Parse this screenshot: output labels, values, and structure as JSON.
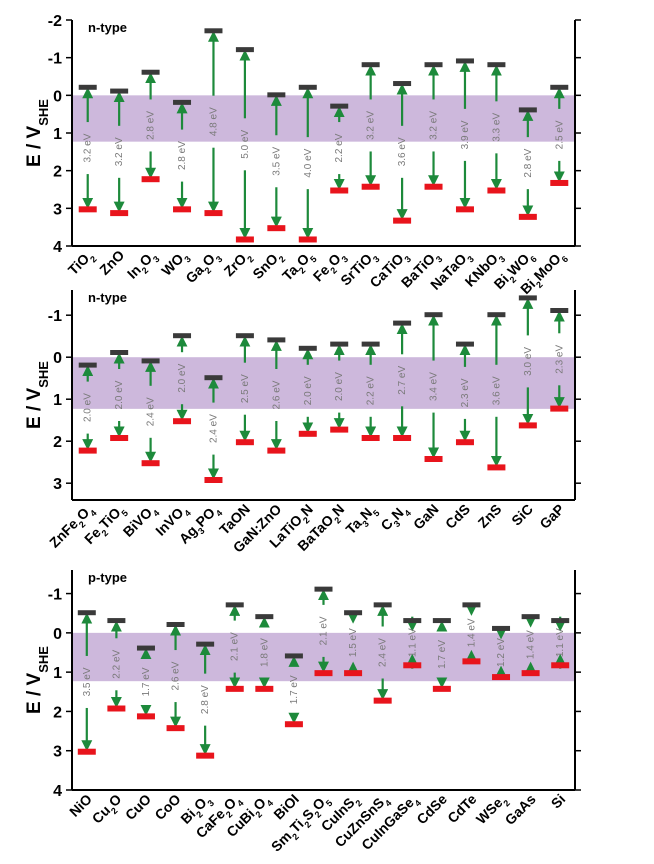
{
  "chart_data": [
    {
      "type": "band-diagram",
      "panel_label": "n-type",
      "ylabel": "E / V",
      "ylabel_sub": "SHE",
      "ylim": [
        4,
        -2
      ],
      "yticks": [
        4,
        3,
        2,
        1,
        0,
        -1,
        -2
      ],
      "water_window": [
        0,
        1.23
      ],
      "materials": [
        {
          "name": [
            "TiO",
            "2"
          ],
          "cb": -0.2,
          "vb": 3.0,
          "gap": "3.2 eV"
        },
        {
          "name": [
            "ZnO"
          ],
          "cb": -0.1,
          "vb": 3.1,
          "gap": "3.2 eV"
        },
        {
          "name": [
            "In",
            "2",
            "O",
            "3"
          ],
          "cb": -0.6,
          "vb": 2.2,
          "gap": "2.8 eV"
        },
        {
          "name": [
            "WO",
            "3"
          ],
          "cb": 0.2,
          "vb": 3.0,
          "gap": "2.8 eV"
        },
        {
          "name": [
            "Ga",
            "2",
            "O",
            "3"
          ],
          "cb": -1.7,
          "vb": 3.1,
          "gap": "4.8 eV"
        },
        {
          "name": [
            "ZrO",
            "2"
          ],
          "cb": -1.2,
          "vb": 3.8,
          "gap": "5.0 eV"
        },
        {
          "name": [
            "SnO",
            "2"
          ],
          "cb": 0.0,
          "vb": 3.5,
          "gap": "3.5 eV"
        },
        {
          "name": [
            "Ta",
            "2",
            "O",
            "5"
          ],
          "cb": -0.2,
          "vb": 3.8,
          "gap": "4.0 eV"
        },
        {
          "name": [
            "Fe",
            "2",
            "O",
            "3"
          ],
          "cb": 0.3,
          "vb": 2.5,
          "gap": "2.2 eV"
        },
        {
          "name": [
            "SrTiO",
            "3"
          ],
          "cb": -0.8,
          "vb": 2.4,
          "gap": "3.2 eV"
        },
        {
          "name": [
            "CaTiO",
            "3"
          ],
          "cb": -0.3,
          "vb": 3.3,
          "gap": "3.6 eV"
        },
        {
          "name": [
            "BaTiO",
            "3"
          ],
          "cb": -0.8,
          "vb": 2.4,
          "gap": "3.2 eV"
        },
        {
          "name": [
            "NaTaO",
            "3"
          ],
          "cb": -0.9,
          "vb": 3.0,
          "gap": "3.9 eV"
        },
        {
          "name": [
            "KNbO",
            "3"
          ],
          "cb": -0.8,
          "vb": 2.5,
          "gap": "3.3 eV"
        },
        {
          "name": [
            "Bi",
            "2",
            "WO",
            "6"
          ],
          "cb": 0.4,
          "vb": 3.2,
          "gap": "2.8 eV"
        },
        {
          "name": [
            "Bi",
            "2",
            "MoO",
            "6"
          ],
          "cb": -0.2,
          "vb": 2.3,
          "gap": "2.5 eV"
        }
      ]
    },
    {
      "type": "band-diagram",
      "panel_label": "n-type",
      "ylabel": "E / V",
      "ylabel_sub": "SHE",
      "ylim": [
        3.4,
        -1.6
      ],
      "yticks": [
        3,
        2,
        1,
        0,
        -1
      ],
      "water_window": [
        0,
        1.23
      ],
      "materials": [
        {
          "name": [
            "ZnFe",
            "2",
            "O",
            "4"
          ],
          "cb": 0.2,
          "vb": 2.2,
          "gap": "2.0 eV"
        },
        {
          "name": [
            "Fe",
            "2",
            "TiO",
            "5"
          ],
          "cb": -0.1,
          "vb": 1.9,
          "gap": "2.0 eV"
        },
        {
          "name": [
            "BiVO",
            "4"
          ],
          "cb": 0.1,
          "vb": 2.5,
          "gap": "2.4 eV"
        },
        {
          "name": [
            "InVO",
            "4"
          ],
          "cb": -0.5,
          "vb": 1.5,
          "gap": "2.0 eV"
        },
        {
          "name": [
            "Ag",
            "3",
            "PO",
            "4"
          ],
          "cb": 0.5,
          "vb": 2.9,
          "gap": "2.4 eV"
        },
        {
          "name": [
            "TaON"
          ],
          "cb": -0.5,
          "vb": 2.0,
          "gap": "2.5 eV"
        },
        {
          "name": [
            "GaN:ZnO"
          ],
          "cb": -0.4,
          "vb": 2.2,
          "gap": "2.6 eV"
        },
        {
          "name": [
            "LaTiO",
            "2",
            "N"
          ],
          "cb": -0.2,
          "vb": 1.8,
          "gap": "2.0 eV"
        },
        {
          "name": [
            "BaTaO",
            "2",
            "N"
          ],
          "cb": -0.3,
          "vb": 1.7,
          "gap": "2.0 eV"
        },
        {
          "name": [
            "Ta",
            "3",
            "N",
            "5"
          ],
          "cb": -0.3,
          "vb": 1.9,
          "gap": "2.2 eV"
        },
        {
          "name": [
            "C",
            "3",
            "N",
            "4"
          ],
          "cb": -0.8,
          "vb": 1.9,
          "gap": "2.7 eV"
        },
        {
          "name": [
            "GaN"
          ],
          "cb": -1.0,
          "vb": 2.4,
          "gap": "3.4 eV"
        },
        {
          "name": [
            "CdS"
          ],
          "cb": -0.3,
          "vb": 2.0,
          "gap": "2.3 eV"
        },
        {
          "name": [
            "ZnS"
          ],
          "cb": -1.0,
          "vb": 2.6,
          "gap": "3.6 eV"
        },
        {
          "name": [
            "SiC"
          ],
          "cb": -1.4,
          "vb": 1.6,
          "gap": "3.0 eV"
        },
        {
          "name": [
            "GaP"
          ],
          "cb": -1.1,
          "vb": 1.2,
          "gap": "2.3 eV"
        }
      ]
    },
    {
      "type": "band-diagram",
      "panel_label": "p-type",
      "ylabel": "E / V",
      "ylabel_sub": "SHE",
      "ylim": [
        4,
        -1.6
      ],
      "yticks": [
        4,
        3,
        2,
        1,
        0,
        -1
      ],
      "water_window": [
        0,
        1.23
      ],
      "materials": [
        {
          "name": [
            "NiO"
          ],
          "cb": -0.5,
          "vb": 3.0,
          "gap": "3.5 eV"
        },
        {
          "name": [
            "Cu",
            "2",
            "O"
          ],
          "cb": -0.3,
          "vb": 1.9,
          "gap": "2.2 eV"
        },
        {
          "name": [
            "CuO"
          ],
          "cb": 0.4,
          "vb": 2.1,
          "gap": "1.7 eV"
        },
        {
          "name": [
            "CoO"
          ],
          "cb": -0.2,
          "vb": 2.4,
          "gap": "2.6 eV"
        },
        {
          "name": [
            "Bi",
            "2",
            "O",
            "3"
          ],
          "cb": 0.3,
          "vb": 3.1,
          "gap": "2.8 eV"
        },
        {
          "name": [
            "CaFe",
            "2",
            "O",
            "4"
          ],
          "cb": -0.7,
          "vb": 1.4,
          "gap": "2.1 eV"
        },
        {
          "name": [
            "CuBi",
            "2",
            "O",
            "4"
          ],
          "cb": -0.4,
          "vb": 1.4,
          "gap": "1.8 eV"
        },
        {
          "name": [
            "BiOI"
          ],
          "cb": 0.6,
          "vb": 2.3,
          "gap": "1.7 eV"
        },
        {
          "name": [
            "Sm",
            "2",
            "Ti",
            "2",
            "S",
            "2",
            "O",
            "5"
          ],
          "cb": -1.1,
          "vb": 1.0,
          "gap": "2.1 eV"
        },
        {
          "name": [
            "CuInS",
            "2"
          ],
          "cb": -0.5,
          "vb": 1.0,
          "gap": "1.5 eV"
        },
        {
          "name": [
            "CuZnSnS",
            "4"
          ],
          "cb": -0.7,
          "vb": 1.7,
          "gap": "2.4 eV"
        },
        {
          "name": [
            "CuInGaSe",
            "4"
          ],
          "cb": -0.3,
          "vb": 0.8,
          "gap": "1.1 eV"
        },
        {
          "name": [
            "CdSe"
          ],
          "cb": -0.3,
          "vb": 1.4,
          "gap": "1.7 eV"
        },
        {
          "name": [
            "CdTe"
          ],
          "cb": -0.7,
          "vb": 0.7,
          "gap": "1.4 eV"
        },
        {
          "name": [
            "WSe",
            "2"
          ],
          "cb": -0.1,
          "vb": 1.1,
          "gap": "1.2 eV"
        },
        {
          "name": [
            "GaAs"
          ],
          "cb": -0.4,
          "vb": 1.0,
          "gap": "1.4 eV"
        },
        {
          "name": [
            "Si"
          ],
          "cb": -0.3,
          "vb": 0.8,
          "gap": "1.1 eV"
        }
      ]
    }
  ],
  "colors": {
    "water_band": "#cdb8dc",
    "arrow": "#1d8a3b",
    "cb_bar": "#3a3a3a",
    "vb_bar": "#e8141c",
    "gap_text": "#7a7a7a",
    "axis": "#000000"
  }
}
